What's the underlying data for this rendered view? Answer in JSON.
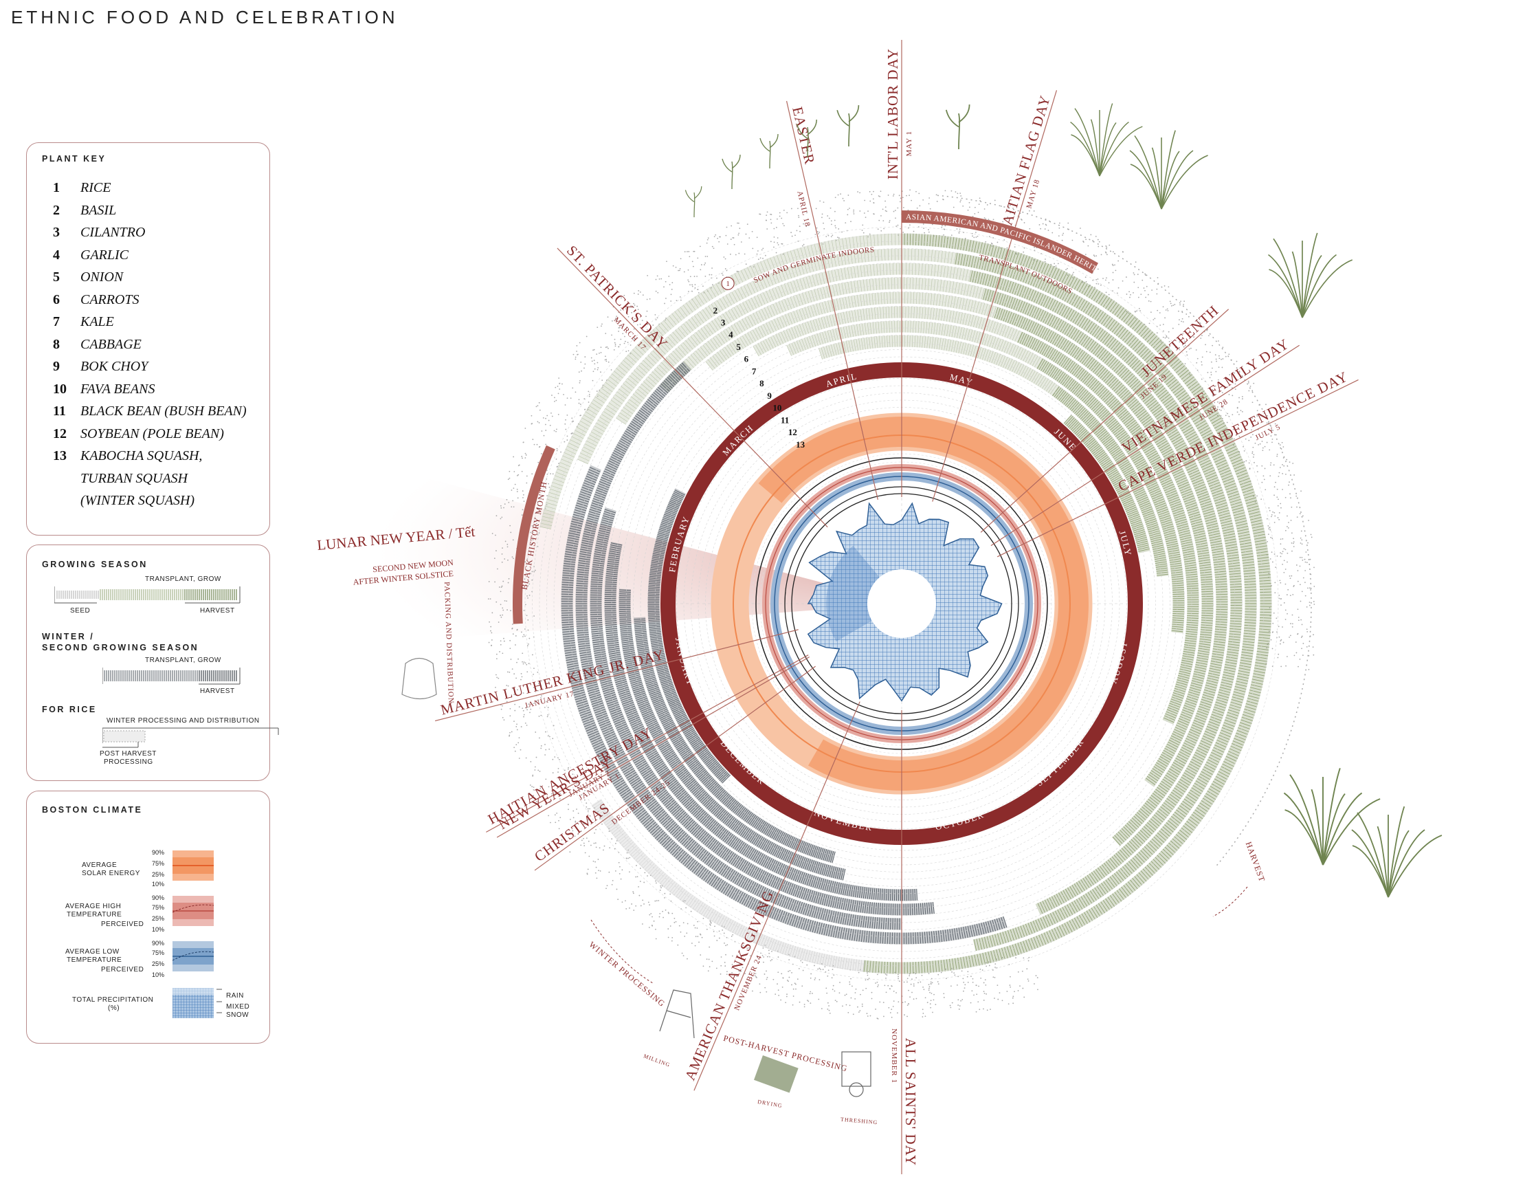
{
  "title": "ETHNIC FOOD AND CELEBRATION",
  "plant_key": {
    "title": "PLANT KEY",
    "items": [
      {
        "num": "1",
        "name": "RICE"
      },
      {
        "num": "2",
        "name": "BASIL"
      },
      {
        "num": "3",
        "name": "CILANTRO"
      },
      {
        "num": "4",
        "name": "GARLIC"
      },
      {
        "num": "5",
        "name": "ONION"
      },
      {
        "num": "6",
        "name": "CARROTS"
      },
      {
        "num": "7",
        "name": "KALE"
      },
      {
        "num": "8",
        "name": "CABBAGE"
      },
      {
        "num": "9",
        "name": "BOK CHOY"
      },
      {
        "num": "10",
        "name": "FAVA BEANS"
      },
      {
        "num": "11",
        "name": "BLACK BEAN (BUSH BEAN)"
      },
      {
        "num": "12",
        "name": "SOYBEAN (POLE BEAN)"
      },
      {
        "num": "13",
        "name": "KABOCHA SQUASH,"
      },
      {
        "num": "",
        "name": "TURBAN SQUASH"
      },
      {
        "num": "",
        "name": "(WINTER SQUASH)"
      }
    ]
  },
  "growing_season": {
    "title": "GROWING SEASON",
    "transplant": "TRANSPLANT, GROW",
    "seed": "SEED",
    "harvest": "HARVEST",
    "winter_title_1": "WINTER /",
    "winter_title_2": "SECOND GROWING SEASON",
    "winter_transplant": "TRANSPLANT, GROW",
    "winter_harvest": "HARVEST",
    "rice_title": "FOR RICE",
    "rice_winter": "WINTER PROCESSING AND DISTRIBUTION",
    "rice_post_1": "POST HARVEST",
    "rice_post_2": "PROCESSING"
  },
  "climate": {
    "title": "BOSTON CLIMATE",
    "solar_1": "AVERAGE",
    "solar_2": "SOLAR ENERGY",
    "high_1": "AVERAGE HIGH",
    "high_2": "TEMPERATURE",
    "high_perceived": "PERCEIVED",
    "low_1": "AVERAGE LOW",
    "low_2": "TEMPERATURE",
    "low_perceived": "PERCEIVED",
    "precip_1": "TOTAL PRECIPITATION",
    "precip_2": "(%)",
    "rain": "RAIN",
    "mixed": "MIXED",
    "snow": "SNOW",
    "pct_90": "90%",
    "pct_75": "75%",
    "pct_25": "25%",
    "pct_10": "10%",
    "colors": {
      "solar": "#f0884f",
      "high": "#d9776a",
      "low": "#4f7fb2",
      "precip": "#4a82bf"
    }
  },
  "wheel": {
    "months": [
      "JANUARY",
      "FEBRUARY",
      "MARCH",
      "APRIL",
      "MAY",
      "JUNE",
      "JULY",
      "AUGUST",
      "SEPTEMBER",
      "OCTOBER",
      "NOVEMBER",
      "DECEMBER"
    ],
    "holidays": [
      {
        "name": "INT'L LABOR DAY",
        "date": "MAY 1"
      },
      {
        "name": "HAITIAN FLAG DAY",
        "date": "MAY 18"
      },
      {
        "name": "EASTER",
        "date": "APRIL 18"
      },
      {
        "name": "ST. PATRICK'S DAY",
        "date": "MARCH 17"
      },
      {
        "name": "JUNETEENTH",
        "date": "JUNE 19"
      },
      {
        "name": "VIETNAMESE FAMILY DAY",
        "date": "JUNE 28"
      },
      {
        "name": "CAPE VERDE INDEPENDENCE DAY",
        "date": "JULY 5"
      },
      {
        "name": "MARTIN LUTHER KING JR. DAY",
        "date": "JANUARY 17"
      },
      {
        "name": "HAITIAN ANCESTRY DAY",
        "date": "JANUARY 2"
      },
      {
        "name": "NEW YEAR'S DAY",
        "date": "JANUARY 1"
      },
      {
        "name": "CHRISTMAS",
        "date": "DECEMBER 24-25"
      },
      {
        "name": "AMERICAN THANKSGIVING",
        "date": "NOVEMBER 24"
      },
      {
        "name": "ALL SAINTS' DAY",
        "date": "NOVEMBER 1"
      }
    ],
    "lunar_new_year": "LUNAR NEW YEAR / Tết",
    "lunar_sub_1": "SECOND NEW MOON",
    "lunar_sub_2": "AFTER WINTER SOLSTICE",
    "black_history": "BLACK HISTORY MONTH",
    "aapi": "ASIAN AMERICAN AND PACIFIC ISLANDER HERITAGE MONTH",
    "sow_indoors": "SOW AND GERMINATE INDOORS",
    "transplant_outdoors": "TRANSPLANT OUTDOORS",
    "ring_one": "1",
    "ring_numbers": [
      "2",
      "3",
      "4",
      "5",
      "6",
      "7",
      "8",
      "9",
      "10",
      "11",
      "12",
      "13"
    ],
    "packing": "PACKING AND DISTRIBUTION",
    "winter_processing": "WINTER PROCESSING",
    "post_harvest": "POST-HARVEST PROCESSING",
    "milling": "MILLING",
    "drying": "DRYING",
    "threshing": "THRESHING",
    "harvest": "HARVEST",
    "colors": {
      "accent": "#8b2b2b",
      "green": "#8fa073",
      "gray": "#5d646c",
      "orange": "#f0884f",
      "blue": "#4a82bf"
    }
  }
}
